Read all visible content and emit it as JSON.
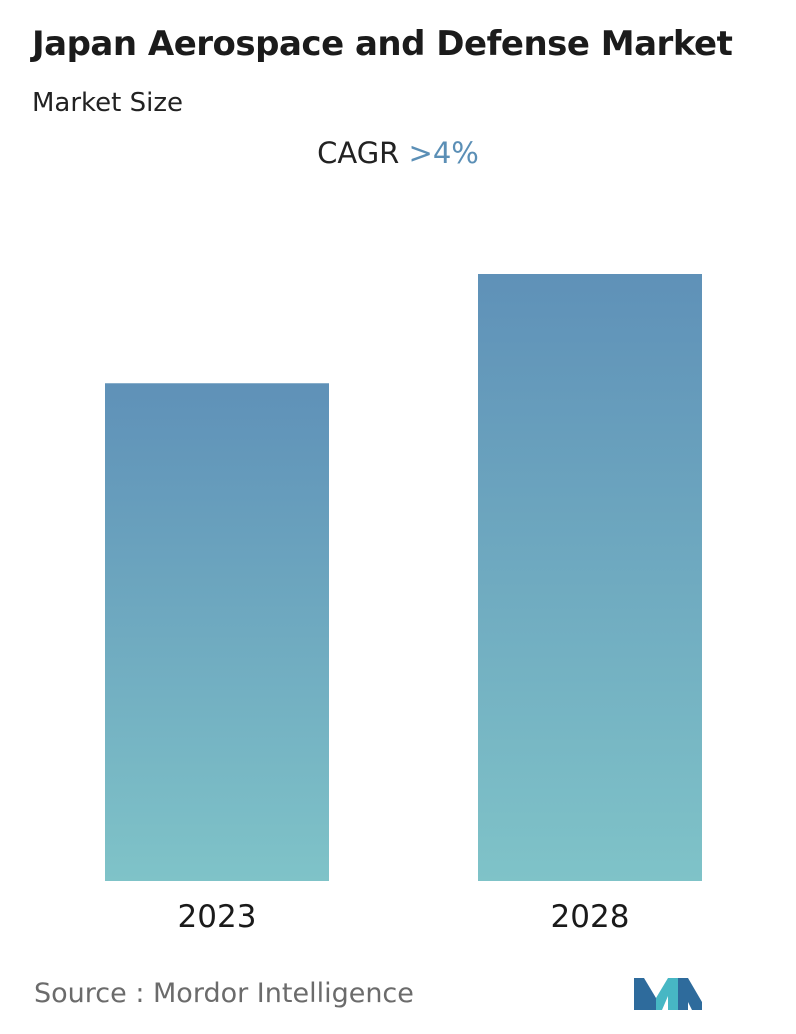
{
  "header": {
    "title": "Japan Aerospace and Defense Market",
    "subtitle": "Market Size"
  },
  "cagr": {
    "label": "CAGR",
    "value": ">4%"
  },
  "footer": {
    "source_label": "Source :",
    "source_name": "Mordor Intelligence"
  },
  "colors": {
    "bar_top": "#5f91b8",
    "bar_bottom": "#7fc3c8",
    "accent": "#5b8fb6",
    "logo_dark": "#2e6b9c",
    "logo_light": "#47b7c4"
  },
  "logo": {
    "icon": "mordor-intelligence-logo-icon"
  },
  "chart_data": {
    "type": "bar",
    "categories": [
      "2023",
      "2028"
    ],
    "values": [
      82,
      100
    ],
    "ylim": [
      0,
      100
    ],
    "grid": false,
    "legend": "none"
  }
}
